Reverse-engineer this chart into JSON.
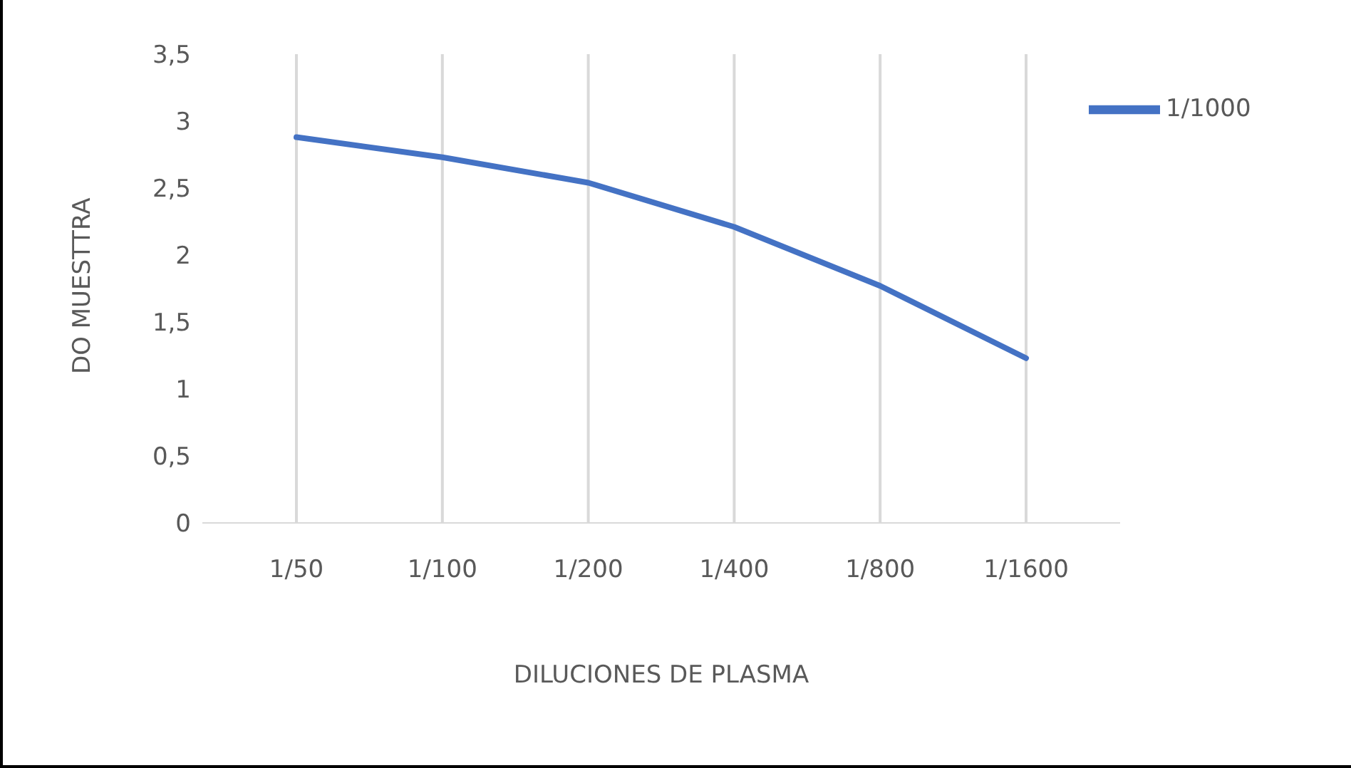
{
  "chart_data": {
    "type": "line",
    "xlabel": "DILUCIONES DE PLASMA",
    "ylabel": "DO MUESTTRA",
    "categories": [
      "1/50",
      "1/100",
      "1/200",
      "1/400",
      "1/800",
      "1/1600"
    ],
    "series": [
      {
        "name": "1/1000",
        "color": "#4472c4",
        "values": [
          2.88,
          2.73,
          2.54,
          2.21,
          1.77,
          1.23
        ]
      }
    ],
    "ylim": [
      0,
      3.5
    ],
    "yticks": [
      0,
      {
        "value": 0.5,
        "label": "0,5"
      },
      1,
      {
        "value": 1.5,
        "label": "1,5"
      },
      2,
      {
        "value": 2.5,
        "label": "2,5"
      },
      3,
      {
        "value": 3.5,
        "label": "3,5"
      }
    ],
    "grid": "x",
    "legend": "top right",
    "marker": "none",
    "line_style": "solid"
  }
}
